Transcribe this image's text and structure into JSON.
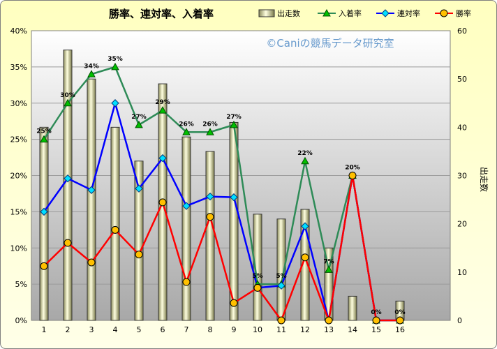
{
  "chart_data": {
    "type": "bar-line-combo",
    "title": "勝率、連対率、入着率",
    "watermark": "©Caniの競馬データ研究室",
    "categories": [
      "1",
      "2",
      "3",
      "4",
      "5",
      "6",
      "7",
      "8",
      "9",
      "10",
      "11",
      "12",
      "13",
      "14",
      "15",
      "16"
    ],
    "y_left": {
      "ylim": [
        0,
        40
      ],
      "ticks": [
        "0%",
        "5%",
        "10%",
        "15%",
        "20%",
        "25%",
        "30%",
        "35%",
        "40%"
      ]
    },
    "y_right": {
      "label": "出走数",
      "ylim": [
        0,
        60
      ],
      "ticks": [
        "0",
        "10",
        "20",
        "30",
        "40",
        "50",
        "60"
      ]
    },
    "legend": {
      "placement": "top-right"
    },
    "bar_series": {
      "name": "出走数",
      "values": [
        40,
        56,
        50,
        40,
        33,
        49,
        38,
        35,
        41,
        22,
        21,
        23,
        15,
        5,
        0,
        4
      ]
    },
    "line_series": [
      {
        "name": "入着率",
        "color": "#2e8b57",
        "marker": "triangle",
        "marker_color": "#00c000",
        "values": [
          25,
          30,
          34,
          35,
          27,
          29,
          26,
          26,
          27,
          5,
          5,
          22,
          7,
          20,
          0,
          0
        ]
      },
      {
        "name": "連対率",
        "color": "#0000ff",
        "marker": "diamond",
        "marker_color": "#00e0ff",
        "values": [
          15,
          19.6,
          18,
          30,
          18.2,
          22.4,
          15.8,
          17.1,
          17,
          4.5,
          4.8,
          13,
          0,
          20,
          0,
          0
        ]
      },
      {
        "name": "勝率",
        "color": "#ff0000",
        "marker": "circle",
        "marker_color": "#ffc000",
        "values": [
          7.5,
          10.7,
          8,
          12.5,
          9.1,
          16.3,
          5.3,
          14.3,
          2.4,
          4.5,
          0,
          8.7,
          0,
          20,
          0,
          0
        ]
      }
    ],
    "data_labels": [
      "25%",
      "30%",
      "34%",
      "35%",
      "27%",
      "29%",
      "26%",
      "26%",
      "27%",
      "5%",
      "5%",
      "22%",
      "7%",
      "20%",
      "0%",
      "0%"
    ],
    "grid": "horizontal"
  }
}
